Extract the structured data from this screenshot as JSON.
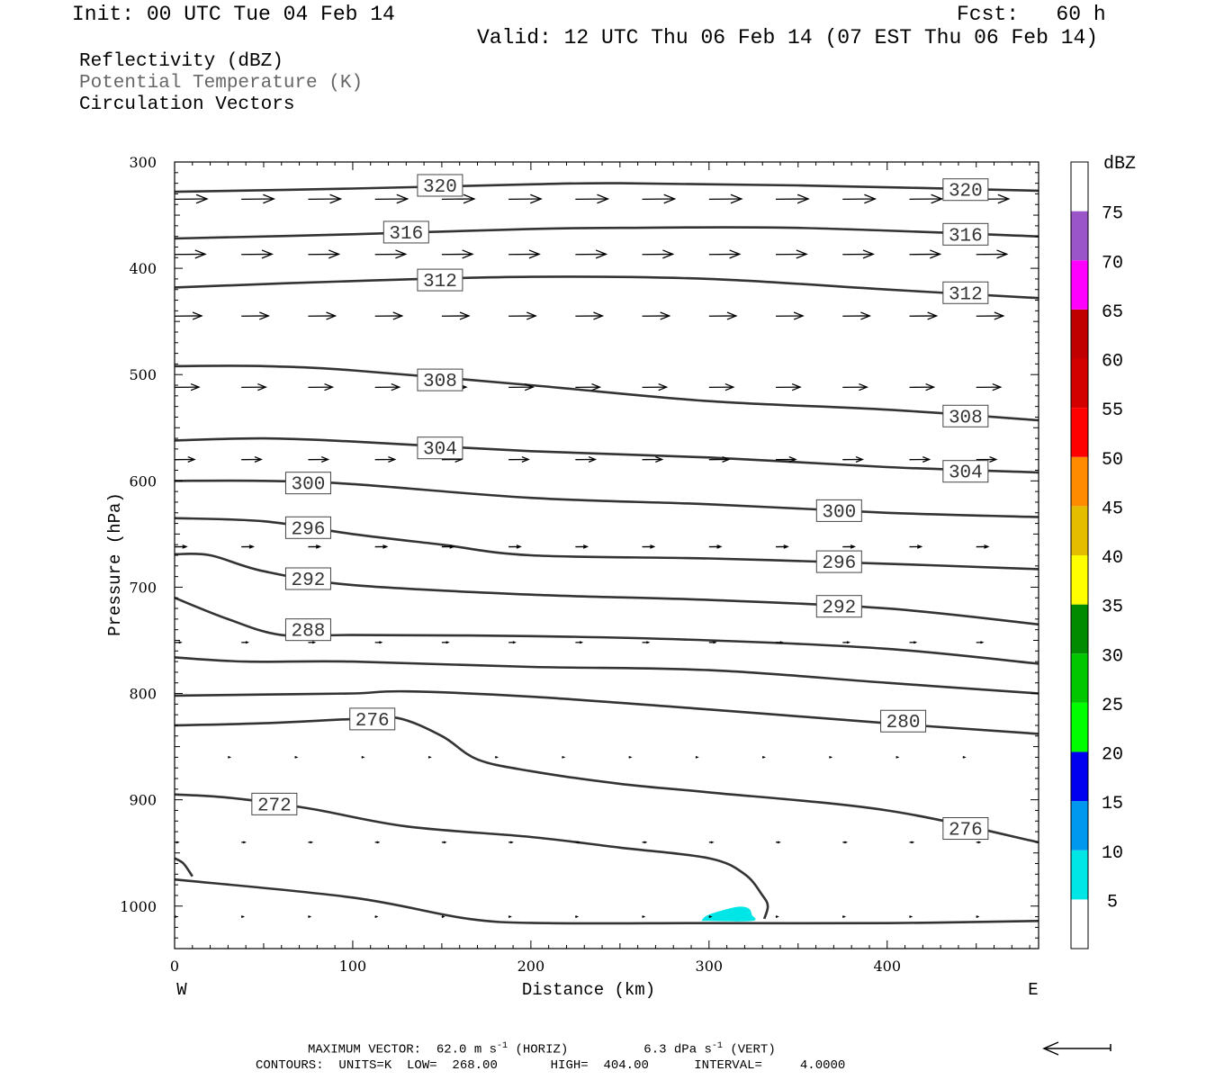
{
  "header": {
    "init": "Init: 00 UTC Tue 04 Feb 14",
    "fcst": "Fcst:   60 h",
    "valid": "Valid: 12 UTC Thu 06 Feb 14 (07 EST Thu 06 Feb 14)"
  },
  "fields": [
    "Reflectivity (dBZ)",
    "Potential Temperature (K)",
    "Circulation Vectors"
  ],
  "colors": {
    "contour": "#333333",
    "muted_text": "#666666",
    "shading": "#00e5e5"
  },
  "footer": {
    "line1": "MAXIMUM VECTOR:  62.0 m s",
    "line1_sup": "-1",
    "line1_mid": " (HORIZ)          6.3 dPa s",
    "line1_sup2": "-1",
    "line1_end": " (VERT)",
    "line2": "CONTOURS:  UNITS=K  LOW=  268.00       HIGH=  404.00      INTERVAL=     4.0000"
  },
  "chart_data": {
    "type": "cross-section",
    "title": "",
    "xlabel": "Distance (km)",
    "ylabel": "Pressure (hPa)",
    "xlim": [
      0,
      485
    ],
    "ylim": [
      1040,
      300
    ],
    "x_ticks": [
      0,
      100,
      200,
      300,
      400
    ],
    "y_ticks": [
      300,
      400,
      500,
      600,
      700,
      800,
      900,
      1000
    ],
    "x_end_labels": {
      "left": "W",
      "right": "E"
    },
    "grid": false,
    "isentropes": [
      {
        "theta": 320,
        "pts": [
          [
            0,
            328
          ],
          [
            100,
            325
          ],
          [
            200,
            321
          ],
          [
            250,
            320
          ],
          [
            350,
            322
          ],
          [
            485,
            327
          ]
        ]
      },
      {
        "theta": 316,
        "pts": [
          [
            0,
            372
          ],
          [
            100,
            368
          ],
          [
            200,
            363
          ],
          [
            250,
            362
          ],
          [
            350,
            362
          ],
          [
            485,
            370
          ]
        ]
      },
      {
        "theta": 312,
        "pts": [
          [
            0,
            418
          ],
          [
            100,
            412
          ],
          [
            200,
            408
          ],
          [
            300,
            410
          ],
          [
            400,
            420
          ],
          [
            485,
            428
          ]
        ]
      },
      {
        "theta": 308,
        "pts": [
          [
            0,
            492
          ],
          [
            50,
            492
          ],
          [
            100,
            496
          ],
          [
            200,
            510
          ],
          [
            300,
            525
          ],
          [
            400,
            533
          ],
          [
            485,
            543
          ]
        ]
      },
      {
        "theta": 304,
        "pts": [
          [
            0,
            562
          ],
          [
            50,
            560
          ],
          [
            100,
            563
          ],
          [
            200,
            572
          ],
          [
            300,
            578
          ],
          [
            400,
            587
          ],
          [
            485,
            592
          ]
        ]
      },
      {
        "theta": 300,
        "pts": [
          [
            0,
            600
          ],
          [
            50,
            600
          ],
          [
            100,
            603
          ],
          [
            200,
            616
          ],
          [
            300,
            622
          ],
          [
            400,
            630
          ],
          [
            485,
            634
          ]
        ]
      },
      {
        "theta": 296,
        "pts": [
          [
            0,
            635
          ],
          [
            50,
            638
          ],
          [
            100,
            650
          ],
          [
            150,
            660
          ],
          [
            200,
            670
          ],
          [
            300,
            673
          ],
          [
            400,
            678
          ],
          [
            485,
            683
          ]
        ]
      },
      {
        "theta": 292,
        "pts": [
          [
            0,
            669
          ],
          [
            20,
            670
          ],
          [
            50,
            685
          ],
          [
            100,
            698
          ],
          [
            200,
            707
          ],
          [
            300,
            712
          ],
          [
            400,
            720
          ],
          [
            485,
            735
          ]
        ]
      },
      {
        "theta": 288,
        "pts": [
          [
            0,
            710
          ],
          [
            30,
            730
          ],
          [
            60,
            745
          ],
          [
            100,
            745
          ],
          [
            200,
            746
          ],
          [
            300,
            750
          ],
          [
            400,
            758
          ],
          [
            485,
            772
          ]
        ]
      },
      {
        "theta": 284,
        "pts": [
          [
            0,
            766
          ],
          [
            40,
            770
          ],
          [
            100,
            770
          ],
          [
            200,
            775
          ],
          [
            300,
            778
          ],
          [
            400,
            790
          ],
          [
            485,
            800
          ]
        ]
      },
      {
        "theta": 280,
        "pts": [
          [
            0,
            802
          ],
          [
            50,
            801
          ],
          [
            100,
            800
          ],
          [
            130,
            798
          ],
          [
            200,
            803
          ],
          [
            300,
            815
          ],
          [
            400,
            828
          ],
          [
            485,
            838
          ]
        ]
      },
      {
        "theta": 276,
        "pts": [
          [
            0,
            830
          ],
          [
            50,
            828
          ],
          [
            100,
            824
          ],
          [
            125,
            823
          ],
          [
            150,
            840
          ],
          [
            170,
            862
          ],
          [
            200,
            873
          ],
          [
            250,
            885
          ],
          [
            300,
            893
          ],
          [
            400,
            910
          ],
          [
            485,
            940
          ]
        ]
      },
      {
        "theta": 272,
        "pts": [
          [
            0,
            895
          ],
          [
            30,
            898
          ],
          [
            75,
            908
          ],
          [
            130,
            925
          ],
          [
            200,
            935
          ],
          [
            250,
            945
          ],
          [
            300,
            955
          ],
          [
            320,
            970
          ],
          [
            330,
            990
          ],
          [
            333,
            1000
          ],
          [
            331,
            1012
          ]
        ]
      },
      {
        "theta": 268,
        "pts": [
          [
            0,
            975
          ],
          [
            100,
            992
          ],
          [
            165,
            1012
          ],
          [
            210,
            1016
          ],
          [
            300,
            1016
          ],
          [
            400,
            1016
          ],
          [
            485,
            1014
          ]
        ]
      },
      {
        "theta": 276,
        "pts": [
          [
            0,
            955
          ],
          [
            5,
            960
          ],
          [
            10,
            972
          ]
        ]
      }
    ],
    "contour_labels": [
      {
        "text": "320",
        "x": 149,
        "p": 322
      },
      {
        "text": "320",
        "x": 444,
        "p": 326
      },
      {
        "text": "316",
        "x": 130,
        "p": 366
      },
      {
        "text": "316",
        "x": 444,
        "p": 368
      },
      {
        "text": "312",
        "x": 149,
        "p": 411
      },
      {
        "text": "312",
        "x": 444,
        "p": 423
      },
      {
        "text": "308",
        "x": 149,
        "p": 505
      },
      {
        "text": "308",
        "x": 444,
        "p": 539
      },
      {
        "text": "304",
        "x": 149,
        "p": 569
      },
      {
        "text": "304",
        "x": 444,
        "p": 591
      },
      {
        "text": "300",
        "x": 75,
        "p": 602
      },
      {
        "text": "300",
        "x": 373,
        "p": 628
      },
      {
        "text": "296",
        "x": 75,
        "p": 644
      },
      {
        "text": "296",
        "x": 373,
        "p": 676
      },
      {
        "text": "292",
        "x": 75,
        "p": 692
      },
      {
        "text": "292",
        "x": 373,
        "p": 718
      },
      {
        "text": "288",
        "x": 75,
        "p": 740
      },
      {
        "text": "280",
        "x": 409,
        "p": 826
      },
      {
        "text": "276",
        "x": 111,
        "p": 824
      },
      {
        "text": "276",
        "x": 444,
        "p": 927
      },
      {
        "text": "272",
        "x": 56,
        "p": 904
      }
    ],
    "vector_rows": [
      {
        "p": 335,
        "len": 36,
        "start": 0,
        "end": 485
      },
      {
        "p": 387,
        "len": 34,
        "start": 0,
        "end": 485
      },
      {
        "p": 445,
        "len": 30,
        "start": 0,
        "end": 472
      },
      {
        "p": 512,
        "len": 27,
        "start": 0,
        "end": 472
      },
      {
        "p": 580,
        "len": 22,
        "start": 0,
        "end": 472
      },
      {
        "p": 662,
        "len": 13,
        "start": 0,
        "end": 472
      },
      {
        "p": 752,
        "len": 7,
        "start": 0,
        "end": 472
      },
      {
        "p": 860,
        "len": 2,
        "start": 30,
        "end": 472
      },
      {
        "p": 940,
        "len": 4,
        "start": 0,
        "end": 485
      },
      {
        "p": 1010,
        "len": 2,
        "start": 0,
        "end": 485
      }
    ],
    "reflectivity_patch": {
      "dbz": 5,
      "pts": [
        [
          296,
          1013
        ],
        [
          300,
          1008
        ],
        [
          315,
          1001
        ],
        [
          322,
          1002
        ],
        [
          324,
          1008
        ],
        [
          324,
          1014
        ],
        [
          296,
          1014
        ]
      ]
    },
    "colorbar": {
      "unit": "dBZ",
      "levels": [
        5,
        10,
        15,
        20,
        25,
        30,
        35,
        40,
        45,
        50,
        55,
        60,
        65,
        70,
        75
      ],
      "colors": [
        "#00e5e5",
        "#0097ef",
        "#0000f0",
        "#00fe00",
        "#00c700",
        "#008b00",
        "#ffff00",
        "#e5bd00",
        "#ff8c00",
        "#ff0000",
        "#d30000",
        "#c00000",
        "#ff00ff",
        "#9a55c9",
        "#ffffff"
      ]
    },
    "reference_vector_direction": "left"
  }
}
